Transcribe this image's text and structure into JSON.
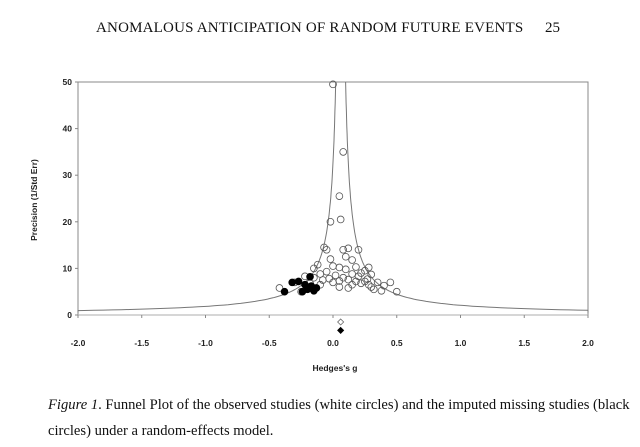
{
  "header": {
    "running_head": "ANOMALOUS ANTICIPATION OF RANDOM FUTURE EVENTS",
    "page_number": "25"
  },
  "chart_data": {
    "type": "scatter",
    "title": "",
    "xlabel": "Hedges's g",
    "ylabel": "Precision (1/Std Err)",
    "xlim": [
      -2.0,
      2.0
    ],
    "ylim": [
      0,
      50
    ],
    "x_ticks": [
      "-2.0",
      "-1.5",
      "-1.0",
      "-0.5",
      "0.0",
      "0.5",
      "1.0",
      "1.5",
      "2.0"
    ],
    "y_ticks": [
      "0",
      "10",
      "20",
      "30",
      "40",
      "50"
    ],
    "grid": false,
    "pooled_effect_center": 0.06,
    "series": [
      {
        "marker": "open-circle",
        "points": [
          [
            0.0,
            49.5
          ],
          [
            0.08,
            35.0
          ],
          [
            0.05,
            25.5
          ],
          [
            0.06,
            20.5
          ],
          [
            -0.02,
            20.0
          ],
          [
            -0.07,
            14.5
          ],
          [
            -0.05,
            14.0
          ],
          [
            0.08,
            14.0
          ],
          [
            0.12,
            14.3
          ],
          [
            0.2,
            14.0
          ],
          [
            -0.02,
            12.0
          ],
          [
            0.1,
            12.5
          ],
          [
            0.15,
            11.8
          ],
          [
            -0.12,
            10.8
          ],
          [
            0.0,
            10.5
          ],
          [
            0.05,
            10.2
          ],
          [
            0.18,
            10.3
          ],
          [
            0.28,
            10.2
          ],
          [
            -0.15,
            10.0
          ],
          [
            0.25,
            9.5
          ],
          [
            -0.05,
            9.3
          ],
          [
            0.1,
            9.8
          ],
          [
            0.22,
            9.0
          ],
          [
            -0.1,
            8.8
          ],
          [
            0.15,
            8.8
          ],
          [
            0.3,
            8.7
          ],
          [
            0.02,
            8.5
          ],
          [
            -0.22,
            8.3
          ],
          [
            0.2,
            8.3
          ],
          [
            -0.15,
            8.0
          ],
          [
            0.08,
            8.0
          ],
          [
            0.27,
            7.7
          ],
          [
            0.12,
            7.6
          ],
          [
            -0.08,
            7.5
          ],
          [
            0.05,
            7.3
          ],
          [
            0.18,
            7.2
          ],
          [
            0.35,
            7.0
          ],
          [
            0.45,
            7.0
          ],
          [
            -0.3,
            7.0
          ],
          [
            0.0,
            7.0
          ],
          [
            0.22,
            6.8
          ],
          [
            0.28,
            6.5
          ],
          [
            -0.1,
            6.5
          ],
          [
            0.15,
            6.5
          ],
          [
            0.4,
            6.3
          ],
          [
            0.05,
            6.0
          ],
          [
            0.3,
            6.0
          ],
          [
            -0.2,
            6.0
          ],
          [
            -0.42,
            5.8
          ],
          [
            0.32,
            5.5
          ],
          [
            0.38,
            5.2
          ],
          [
            0.5,
            5.0
          ],
          [
            -0.25,
            5.0
          ],
          [
            0.12,
            5.8
          ],
          [
            -0.03,
            7.8
          ],
          [
            0.25,
            7.2
          ],
          [
            -0.18,
            6.8
          ]
        ]
      },
      {
        "marker": "filled-circle",
        "points": [
          [
            -0.38,
            5.0
          ],
          [
            -0.32,
            7.0
          ],
          [
            -0.27,
            7.2
          ],
          [
            -0.22,
            6.5
          ],
          [
            -0.18,
            8.2
          ],
          [
            -0.17,
            6.2
          ],
          [
            -0.2,
            5.5
          ],
          [
            -0.15,
            5.2
          ],
          [
            -0.13,
            5.8
          ],
          [
            -0.24,
            5.0
          ]
        ]
      },
      {
        "marker": "open-diamond",
        "points": [
          [
            0.06,
            -1.5
          ]
        ]
      },
      {
        "marker": "filled-diamond",
        "points": [
          [
            0.06,
            -3.3
          ]
        ]
      }
    ]
  },
  "caption": {
    "figure_label": "Figure 1",
    "text": ". Funnel Plot of the observed studies (white circles) and the imputed missing studies (black circles) under a random-effects model."
  }
}
